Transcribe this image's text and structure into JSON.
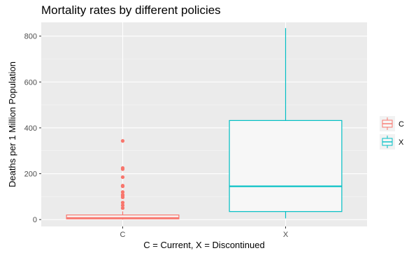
{
  "chart_data": {
    "type": "box",
    "title": "Mortality rates by different policies",
    "xlabel": "C = Current, X = Discontinued",
    "ylabel": "Deaths per 1 Million Population",
    "categories": [
      "C",
      "X"
    ],
    "ylim": [
      -30,
      860
    ],
    "yticks": [
      0,
      200,
      400,
      600,
      800
    ],
    "grid": true,
    "legend_position": "right",
    "series": [
      {
        "name": "C",
        "color": "#F8766D",
        "q1": 3,
        "median": 7,
        "q3": 20,
        "whisker_low": 0,
        "whisker_high": 36,
        "outliers": [
          50,
          62,
          74,
          97,
          104,
          108,
          120,
          145,
          148,
          185,
          220,
          225,
          343
        ]
      },
      {
        "name": "X",
        "color": "#00BFC4",
        "q1": 35,
        "median": 145,
        "q3": 432,
        "whisker_low": 5,
        "whisker_high": 835,
        "outliers": []
      }
    ]
  }
}
